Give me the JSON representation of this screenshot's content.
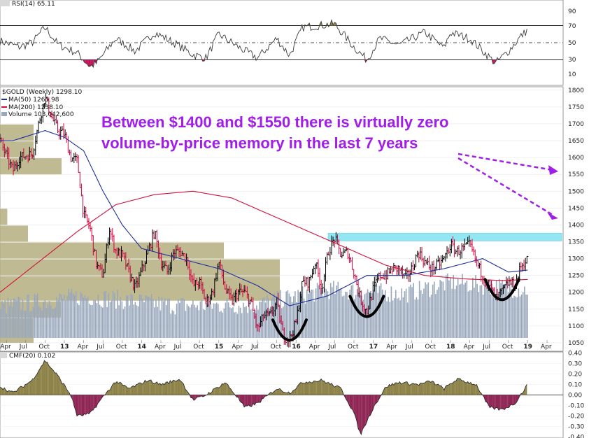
{
  "colors": {
    "price_up": "#000000",
    "price_down": "#d0003c",
    "ma50": "#1f2f9a",
    "ma200": "#d0103a",
    "volume": "#9aa8bc",
    "vbp": "#b5ae80",
    "rsi_line": "#3a3a3a",
    "rsi_over": "#c2125a",
    "cmf_pos": "#8c8147",
    "cmf_neg": "#8f2554",
    "highlight": "#6fe0ee",
    "annotation": "#a11ee8",
    "arc": "#000000"
  },
  "rsi_panel": {
    "label": "RSI(14) 65.11",
    "ticks": [
      "90",
      "70",
      "50",
      "30",
      "10"
    ]
  },
  "main_panel": {
    "legend": {
      "title": "$GOLD (Weekly) 1298.10",
      "ma50": "MA(50) 1265.98",
      "ma200": "MA(200) 1238.10",
      "volume": "Volume 103,042,600"
    },
    "price_ticks": [
      "1800",
      "1750",
      "1700",
      "1650",
      "1600",
      "1550",
      "1500",
      "1450",
      "1400",
      "1350",
      "1300",
      "1250",
      "1200",
      "1150",
      "1100",
      "1050"
    ],
    "x_labels": [
      "Apr",
      "Jul",
      "Oct",
      "13",
      "Apr",
      "Jul",
      "Oct",
      "14",
      "Apr",
      "Jul",
      "Oct",
      "15",
      "Apr",
      "Jul",
      "Oct",
      "16",
      "Apr",
      "Jul",
      "Oct",
      "17",
      "Apr",
      "Jul",
      "Oct",
      "18",
      "Apr",
      "Jul",
      "Oct",
      "19",
      "Apr"
    ],
    "annotation": {
      "line1": "Between $1400 and $1550 there is virtually zero",
      "line2": "volume-by-price memory in the last 7 years"
    }
  },
  "cmf_panel": {
    "label": "CMF(20) 0.102",
    "ticks": [
      "0.40",
      "0.30",
      "0.20",
      "0.10",
      "0.00",
      "-0.10",
      "-0.20",
      "-0.30",
      "-0.40"
    ]
  },
  "chart_data": {
    "type": "line",
    "title": "$GOLD (Weekly) 1298.10",
    "x_range": [
      "2012-03",
      "2019-04"
    ],
    "ylim": [
      1025,
      1810
    ],
    "price_anchors": [
      [
        "2012-03",
        1650
      ],
      [
        "2012-05",
        1560
      ],
      [
        "2012-06",
        1600
      ],
      [
        "2012-08",
        1610
      ],
      [
        "2012-09",
        1700
      ],
      [
        "2012-10",
        1780
      ],
      [
        "2012-11",
        1720
      ],
      [
        "2012-12",
        1680
      ],
      [
        "2013-01",
        1670
      ],
      [
        "2013-02",
        1600
      ],
      [
        "2013-03",
        1590
      ],
      [
        "2013-04",
        1430
      ],
      [
        "2013-05",
        1390
      ],
      [
        "2013-06",
        1280
      ],
      [
        "2013-07",
        1250
      ],
      [
        "2013-08",
        1390
      ],
      [
        "2013-09",
        1320
      ],
      [
        "2013-10",
        1310
      ],
      [
        "2013-11",
        1260
      ],
      [
        "2013-12",
        1210
      ],
      [
        "2014-02",
        1320
      ],
      [
        "2014-03",
        1380
      ],
      [
        "2014-04",
        1290
      ],
      [
        "2014-05",
        1260
      ],
      [
        "2014-06",
        1320
      ],
      [
        "2014-07",
        1320
      ],
      [
        "2014-08",
        1300
      ],
      [
        "2014-09",
        1220
      ],
      [
        "2014-10",
        1230
      ],
      [
        "2014-11",
        1170
      ],
      [
        "2014-12",
        1200
      ],
      [
        "2015-01",
        1290
      ],
      [
        "2015-02",
        1210
      ],
      [
        "2015-03",
        1170
      ],
      [
        "2015-04",
        1200
      ],
      [
        "2015-05",
        1200
      ],
      [
        "2015-06",
        1170
      ],
      [
        "2015-07",
        1090
      ],
      [
        "2015-08",
        1130
      ],
      [
        "2015-09",
        1130
      ],
      [
        "2015-10",
        1170
      ],
      [
        "2015-11",
        1070
      ],
      [
        "2015-12",
        1060
      ],
      [
        "2016-01",
        1110
      ],
      [
        "2016-02",
        1230
      ],
      [
        "2016-03",
        1230
      ],
      [
        "2016-04",
        1290
      ],
      [
        "2016-05",
        1210
      ],
      [
        "2016-06",
        1320
      ],
      [
        "2016-07",
        1360
      ],
      [
        "2016-08",
        1310
      ],
      [
        "2016-09",
        1320
      ],
      [
        "2016-10",
        1260
      ],
      [
        "2016-11",
        1180
      ],
      [
        "2016-12",
        1140
      ],
      [
        "2017-01",
        1210
      ],
      [
        "2017-02",
        1250
      ],
      [
        "2017-03",
        1250
      ],
      [
        "2017-04",
        1270
      ],
      [
        "2017-05",
        1270
      ],
      [
        "2017-06",
        1240
      ],
      [
        "2017-07",
        1270
      ],
      [
        "2017-08",
        1320
      ],
      [
        "2017-09",
        1290
      ],
      [
        "2017-10",
        1270
      ],
      [
        "2017-11",
        1280
      ],
      [
        "2017-12",
        1300
      ],
      [
        "2018-01",
        1340
      ],
      [
        "2018-02",
        1320
      ],
      [
        "2018-03",
        1330
      ],
      [
        "2018-04",
        1340
      ],
      [
        "2018-05",
        1290
      ],
      [
        "2018-06",
        1250
      ],
      [
        "2018-07",
        1220
      ],
      [
        "2018-08",
        1180
      ],
      [
        "2018-09",
        1200
      ],
      [
        "2018-10",
        1230
      ],
      [
        "2018-11",
        1220
      ],
      [
        "2018-12",
        1280
      ],
      [
        "2019-01",
        1298
      ]
    ],
    "ma50_anchors": [
      [
        "2012-03",
        1650
      ],
      [
        "2012-05",
        1650
      ],
      [
        "2012-10",
        1680
      ],
      [
        "2013-01",
        1660
      ],
      [
        "2013-04",
        1620
      ],
      [
        "2013-07",
        1500
      ],
      [
        "2013-10",
        1400
      ],
      [
        "2014-01",
        1330
      ],
      [
        "2014-07",
        1300
      ],
      [
        "2015-01",
        1270
      ],
      [
        "2015-07",
        1220
      ],
      [
        "2015-12",
        1160
      ],
      [
        "2016-06",
        1190
      ],
      [
        "2016-12",
        1250
      ],
      [
        "2017-06",
        1250
      ],
      [
        "2017-12",
        1270
      ],
      [
        "2018-06",
        1300
      ],
      [
        "2018-10",
        1260
      ],
      [
        "2019-01",
        1266
      ]
    ],
    "ma200_anchors": [
      [
        "2012-03",
        1200
      ],
      [
        "2012-09",
        1290
      ],
      [
        "2013-03",
        1380
      ],
      [
        "2013-09",
        1460
      ],
      [
        "2014-03",
        1490
      ],
      [
        "2014-09",
        1500
      ],
      [
        "2015-03",
        1480
      ],
      [
        "2015-09",
        1430
      ],
      [
        "2016-03",
        1380
      ],
      [
        "2016-09",
        1330
      ],
      [
        "2017-03",
        1280
      ],
      [
        "2017-09",
        1250
      ],
      [
        "2018-03",
        1240
      ],
      [
        "2018-09",
        1235
      ],
      [
        "2019-01",
        1238
      ]
    ],
    "volume_by_price": [
      {
        "from": 1050,
        "to": 1125,
        "level": 0.06
      },
      {
        "from": 1125,
        "to": 1175,
        "level": 0.11
      },
      {
        "from": 1175,
        "to": 1250,
        "level": 0.5
      },
      {
        "from": 1250,
        "to": 1300,
        "level": 0.5
      },
      {
        "from": 1300,
        "to": 1350,
        "level": 0.4
      },
      {
        "from": 1350,
        "to": 1400,
        "level": 0.05
      },
      {
        "from": 1400,
        "to": 1450,
        "level": 0.013
      },
      {
        "from": 1550,
        "to": 1600,
        "level": 0.11
      },
      {
        "from": 1600,
        "to": 1650,
        "level": 0.06
      },
      {
        "from": 1650,
        "to": 1700,
        "level": 0.06
      }
    ],
    "resistance_zone": {
      "from": 1353,
      "to": 1375,
      "start": "2016-06",
      "end": "2019-04"
    },
    "bottoms": [
      {
        "center": "2015-12",
        "low": 1060
      },
      {
        "center": "2016-12",
        "low": 1130
      },
      {
        "center": "2018-09",
        "low": 1180
      }
    ],
    "rsi": {
      "ylim": [
        0,
        100
      ],
      "overbought": 70,
      "oversold": 30,
      "mid": 50,
      "anchors": [
        [
          "2012-03",
          52
        ],
        [
          "2012-06",
          45
        ],
        [
          "2012-08",
          50
        ],
        [
          "2012-10",
          68
        ],
        [
          "2012-12",
          48
        ],
        [
          "2013-03",
          38
        ],
        [
          "2013-05",
          22
        ],
        [
          "2013-06",
          26
        ],
        [
          "2013-09",
          55
        ],
        [
          "2013-12",
          40
        ],
        [
          "2014-03",
          62
        ],
        [
          "2014-06",
          50
        ],
        [
          "2014-09",
          36
        ],
        [
          "2014-11",
          32
        ],
        [
          "2015-01",
          60
        ],
        [
          "2015-04",
          45
        ],
        [
          "2015-07",
          32
        ],
        [
          "2015-10",
          55
        ],
        [
          "2015-12",
          35
        ],
        [
          "2016-02",
          68
        ],
        [
          "2016-07",
          72
        ],
        [
          "2016-10",
          45
        ],
        [
          "2016-12",
          30
        ],
        [
          "2017-02",
          55
        ],
        [
          "2017-05",
          47
        ],
        [
          "2017-09",
          62
        ],
        [
          "2017-12",
          44
        ],
        [
          "2018-01",
          62
        ],
        [
          "2018-04",
          55
        ],
        [
          "2018-08",
          26
        ],
        [
          "2018-10",
          40
        ],
        [
          "2018-12",
          58
        ],
        [
          "2019-01",
          65
        ]
      ]
    },
    "cmf": {
      "ylim": [
        -0.4,
        0.4
      ],
      "anchors": [
        [
          "2012-03",
          0.08
        ],
        [
          "2012-05",
          0.02
        ],
        [
          "2012-08",
          0.14
        ],
        [
          "2012-10",
          0.33
        ],
        [
          "2012-12",
          0.18
        ],
        [
          "2013-02",
          0.0
        ],
        [
          "2013-03",
          -0.2
        ],
        [
          "2013-05",
          -0.18
        ],
        [
          "2013-07",
          -0.02
        ],
        [
          "2013-09",
          0.13
        ],
        [
          "2013-11",
          0.06
        ],
        [
          "2014-02",
          0.14
        ],
        [
          "2014-04",
          0.1
        ],
        [
          "2014-07",
          0.15
        ],
        [
          "2014-09",
          -0.05
        ],
        [
          "2014-11",
          0.0
        ],
        [
          "2015-02",
          0.12
        ],
        [
          "2015-04",
          -0.03
        ],
        [
          "2015-05",
          -0.12
        ],
        [
          "2015-07",
          -0.08
        ],
        [
          "2015-10",
          0.06
        ],
        [
          "2015-12",
          0.02
        ],
        [
          "2016-02",
          0.12
        ],
        [
          "2016-05",
          0.14
        ],
        [
          "2016-08",
          0.06
        ],
        [
          "2016-10",
          -0.17
        ],
        [
          "2016-11",
          -0.38
        ],
        [
          "2017-01",
          -0.12
        ],
        [
          "2017-03",
          0.08
        ],
        [
          "2017-05",
          0.12
        ],
        [
          "2017-08",
          0.1
        ],
        [
          "2017-10",
          0.13
        ],
        [
          "2017-12",
          0.06
        ],
        [
          "2018-02",
          0.15
        ],
        [
          "2018-05",
          0.1
        ],
        [
          "2018-07",
          -0.12
        ],
        [
          "2018-09",
          -0.14
        ],
        [
          "2018-11",
          -0.08
        ],
        [
          "2019-01",
          0.1
        ]
      ]
    }
  }
}
